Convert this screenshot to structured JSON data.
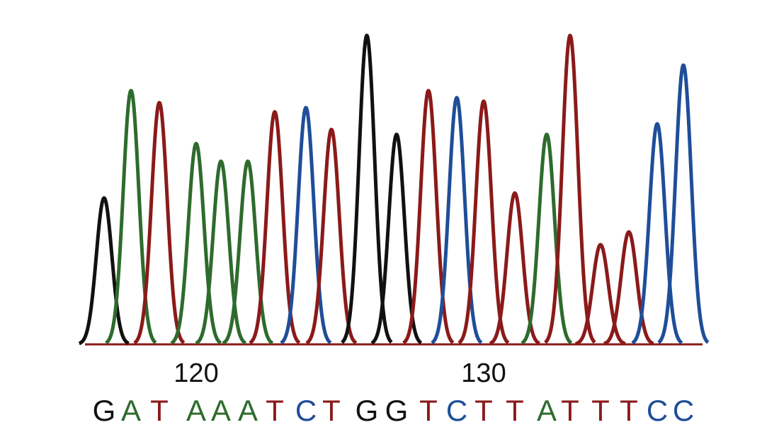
{
  "chart_data": {
    "type": "chromatogram",
    "base_colors": {
      "G": "#111111",
      "A": "#2e6b2e",
      "T": "#8b1a1a",
      "C": "#1f4e99"
    },
    "position_labels": [
      120,
      130
    ],
    "bases": [
      {
        "base": "G",
        "intensity": 207
      },
      {
        "base": "A",
        "intensity": 359
      },
      {
        "base": "T",
        "intensity": 342
      },
      {
        "base": "A",
        "intensity": 284
      },
      {
        "base": "A",
        "intensity": 259
      },
      {
        "base": "A",
        "intensity": 259
      },
      {
        "base": "T",
        "intensity": 329
      },
      {
        "base": "C",
        "intensity": 335
      },
      {
        "base": "T",
        "intensity": 304
      },
      {
        "base": "G",
        "intensity": 437
      },
      {
        "base": "G",
        "intensity": 297
      },
      {
        "base": "T",
        "intensity": 359
      },
      {
        "base": "C",
        "intensity": 349
      },
      {
        "base": "T",
        "intensity": 344
      },
      {
        "base": "T",
        "intensity": 214
      },
      {
        "base": "A",
        "intensity": 297
      },
      {
        "base": "T",
        "intensity": 437
      },
      {
        "base": "T",
        "intensity": 141
      },
      {
        "base": "T",
        "intensity": 159
      },
      {
        "base": "C",
        "intensity": 312
      },
      {
        "base": "C",
        "intensity": 395
      }
    ]
  }
}
